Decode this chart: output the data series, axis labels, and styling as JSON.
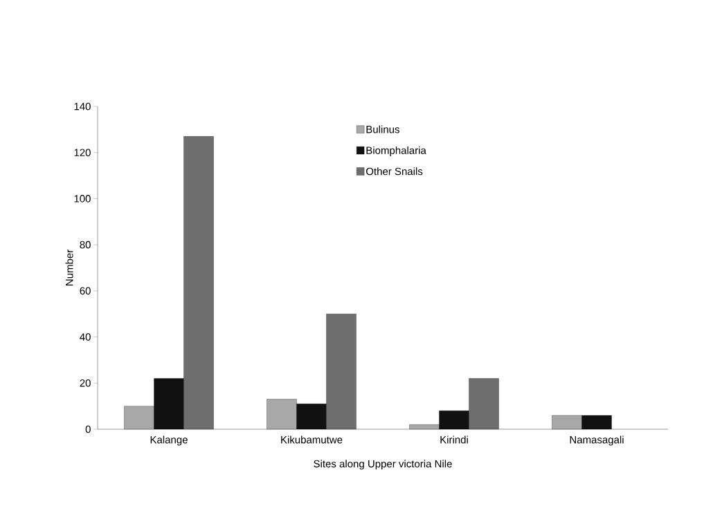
{
  "chart_data": {
    "type": "bar",
    "xlabel": "Sites along Upper victoria Nile",
    "ylabel": "Number",
    "categories": [
      "Kalange",
      "Kikubamutwe",
      "Kirindi",
      "Namasagali"
    ],
    "series": [
      {
        "name": "Bulinus",
        "color": "#a8a8a8",
        "values": [
          10,
          13,
          2,
          6
        ]
      },
      {
        "name": "Biomphalaria",
        "color": "#111111",
        "values": [
          22,
          11,
          8,
          6
        ]
      },
      {
        "name": "Other Snails",
        "color": "#6e6e6e",
        "values": [
          127,
          50,
          22,
          null
        ]
      }
    ],
    "ylim": [
      0,
      140
    ],
    "yticks": [
      0,
      20,
      40,
      60,
      80,
      100,
      120,
      140
    ],
    "legend": "top",
    "grid": false
  }
}
